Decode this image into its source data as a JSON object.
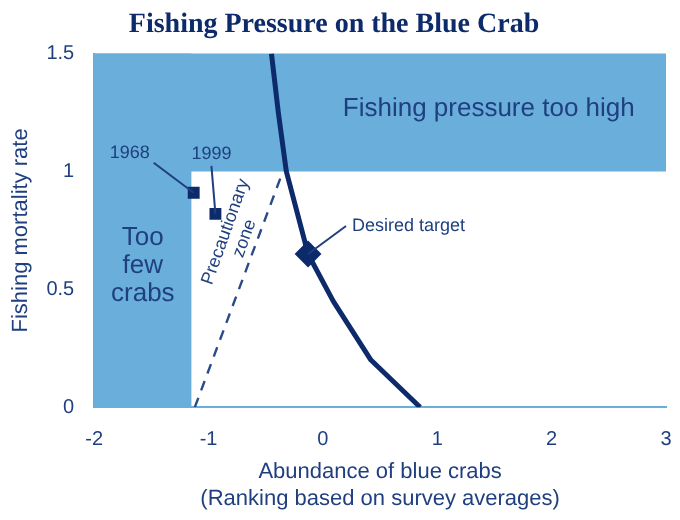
{
  "chart_data": {
    "type": "line",
    "title": "Fishing Pressure on the Blue Crab",
    "xlabel": "Abundance of blue crabs\n(Ranking based on survey averages)",
    "ylabel": "Fishing mortality rate",
    "xlim": [
      -2,
      3
    ],
    "xticks": [
      -2,
      -1,
      0,
      1,
      2,
      3
    ],
    "ylim": [
      0,
      1.5
    ],
    "yticks": [
      0,
      0.5,
      1,
      1.5
    ],
    "grid": false,
    "bands": [
      {
        "axis": "y",
        "from": 1,
        "to": 1.5,
        "label": "Fishing pressure too high",
        "color": "#6aaedb"
      },
      {
        "axis": "x",
        "from": -2,
        "to": -1.15,
        "label": "Too\nfew\ncrabs",
        "color": "#6aaedb"
      }
    ],
    "series": [
      {
        "color": "#0d2a6b",
        "x": [
          -0.45,
          -0.39,
          -0.32,
          -0.13,
          0.09,
          0.42,
          0.85
        ],
        "values": [
          1.5,
          1.25,
          1,
          0.65,
          0.45,
          0.2,
          0
        ],
        "marker": "none",
        "line_style": "solid"
      },
      {
        "color": "#2b4a8a",
        "x": [
          -1.12,
          -0.35
        ],
        "values": [
          0,
          1
        ],
        "marker": "none",
        "line_style": "dashed"
      },
      {
        "type": "scatter",
        "color": "#0d2a6b",
        "x": [
          -1.13,
          -0.94
        ],
        "values": [
          0.91,
          0.82
        ],
        "marker": "square"
      },
      {
        "type": "scatter",
        "color": "#0d2a6b",
        "x": [
          -0.13
        ],
        "values": [
          0.65
        ],
        "marker": "diamond"
      }
    ],
    "annotations": [
      {
        "text": "1968",
        "x": -1.13,
        "y": 0.91
      },
      {
        "text": "1999",
        "x": -0.94,
        "y": 0.82
      },
      {
        "text": "Desired target",
        "x": -0.13,
        "y": 0.65
      },
      "Precautionary\nzone"
    ]
  }
}
